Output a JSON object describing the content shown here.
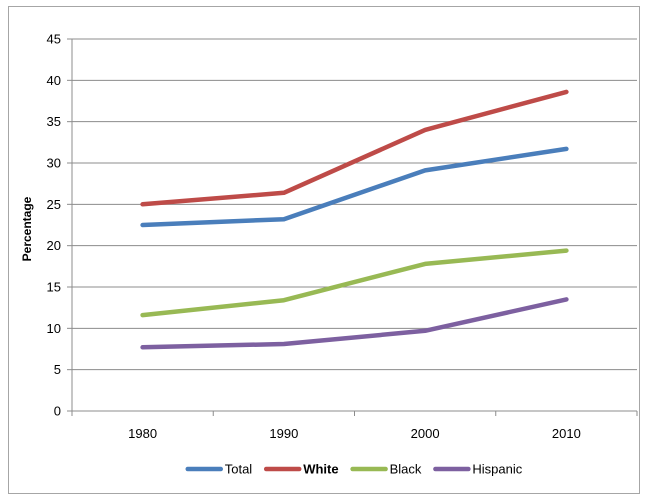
{
  "chart_data": {
    "type": "line",
    "title": "",
    "xlabel": "",
    "ylabel": "Percentage",
    "categories": [
      "1980",
      "1990",
      "2000",
      "2010"
    ],
    "ylim": [
      0,
      45
    ],
    "yticks": [
      "0",
      "5",
      "10",
      "15",
      "20",
      "25",
      "30",
      "35",
      "40",
      "45"
    ],
    "grid": "horizontal",
    "legend_position": "bottom",
    "series": [
      {
        "name": "Total",
        "color": "#4a7ebb",
        "bold": false,
        "values": [
          22.5,
          23.2,
          29.1,
          31.7
        ]
      },
      {
        "name": "White",
        "color": "#be4b48",
        "bold": true,
        "values": [
          25.0,
          26.4,
          34.0,
          38.6
        ]
      },
      {
        "name": "Black",
        "color": "#98b954",
        "bold": false,
        "values": [
          11.6,
          13.4,
          17.8,
          19.4
        ]
      },
      {
        "name": "Hispanic",
        "color": "#7d60a0",
        "bold": false,
        "values": [
          7.7,
          8.1,
          9.7,
          13.5
        ]
      }
    ]
  }
}
